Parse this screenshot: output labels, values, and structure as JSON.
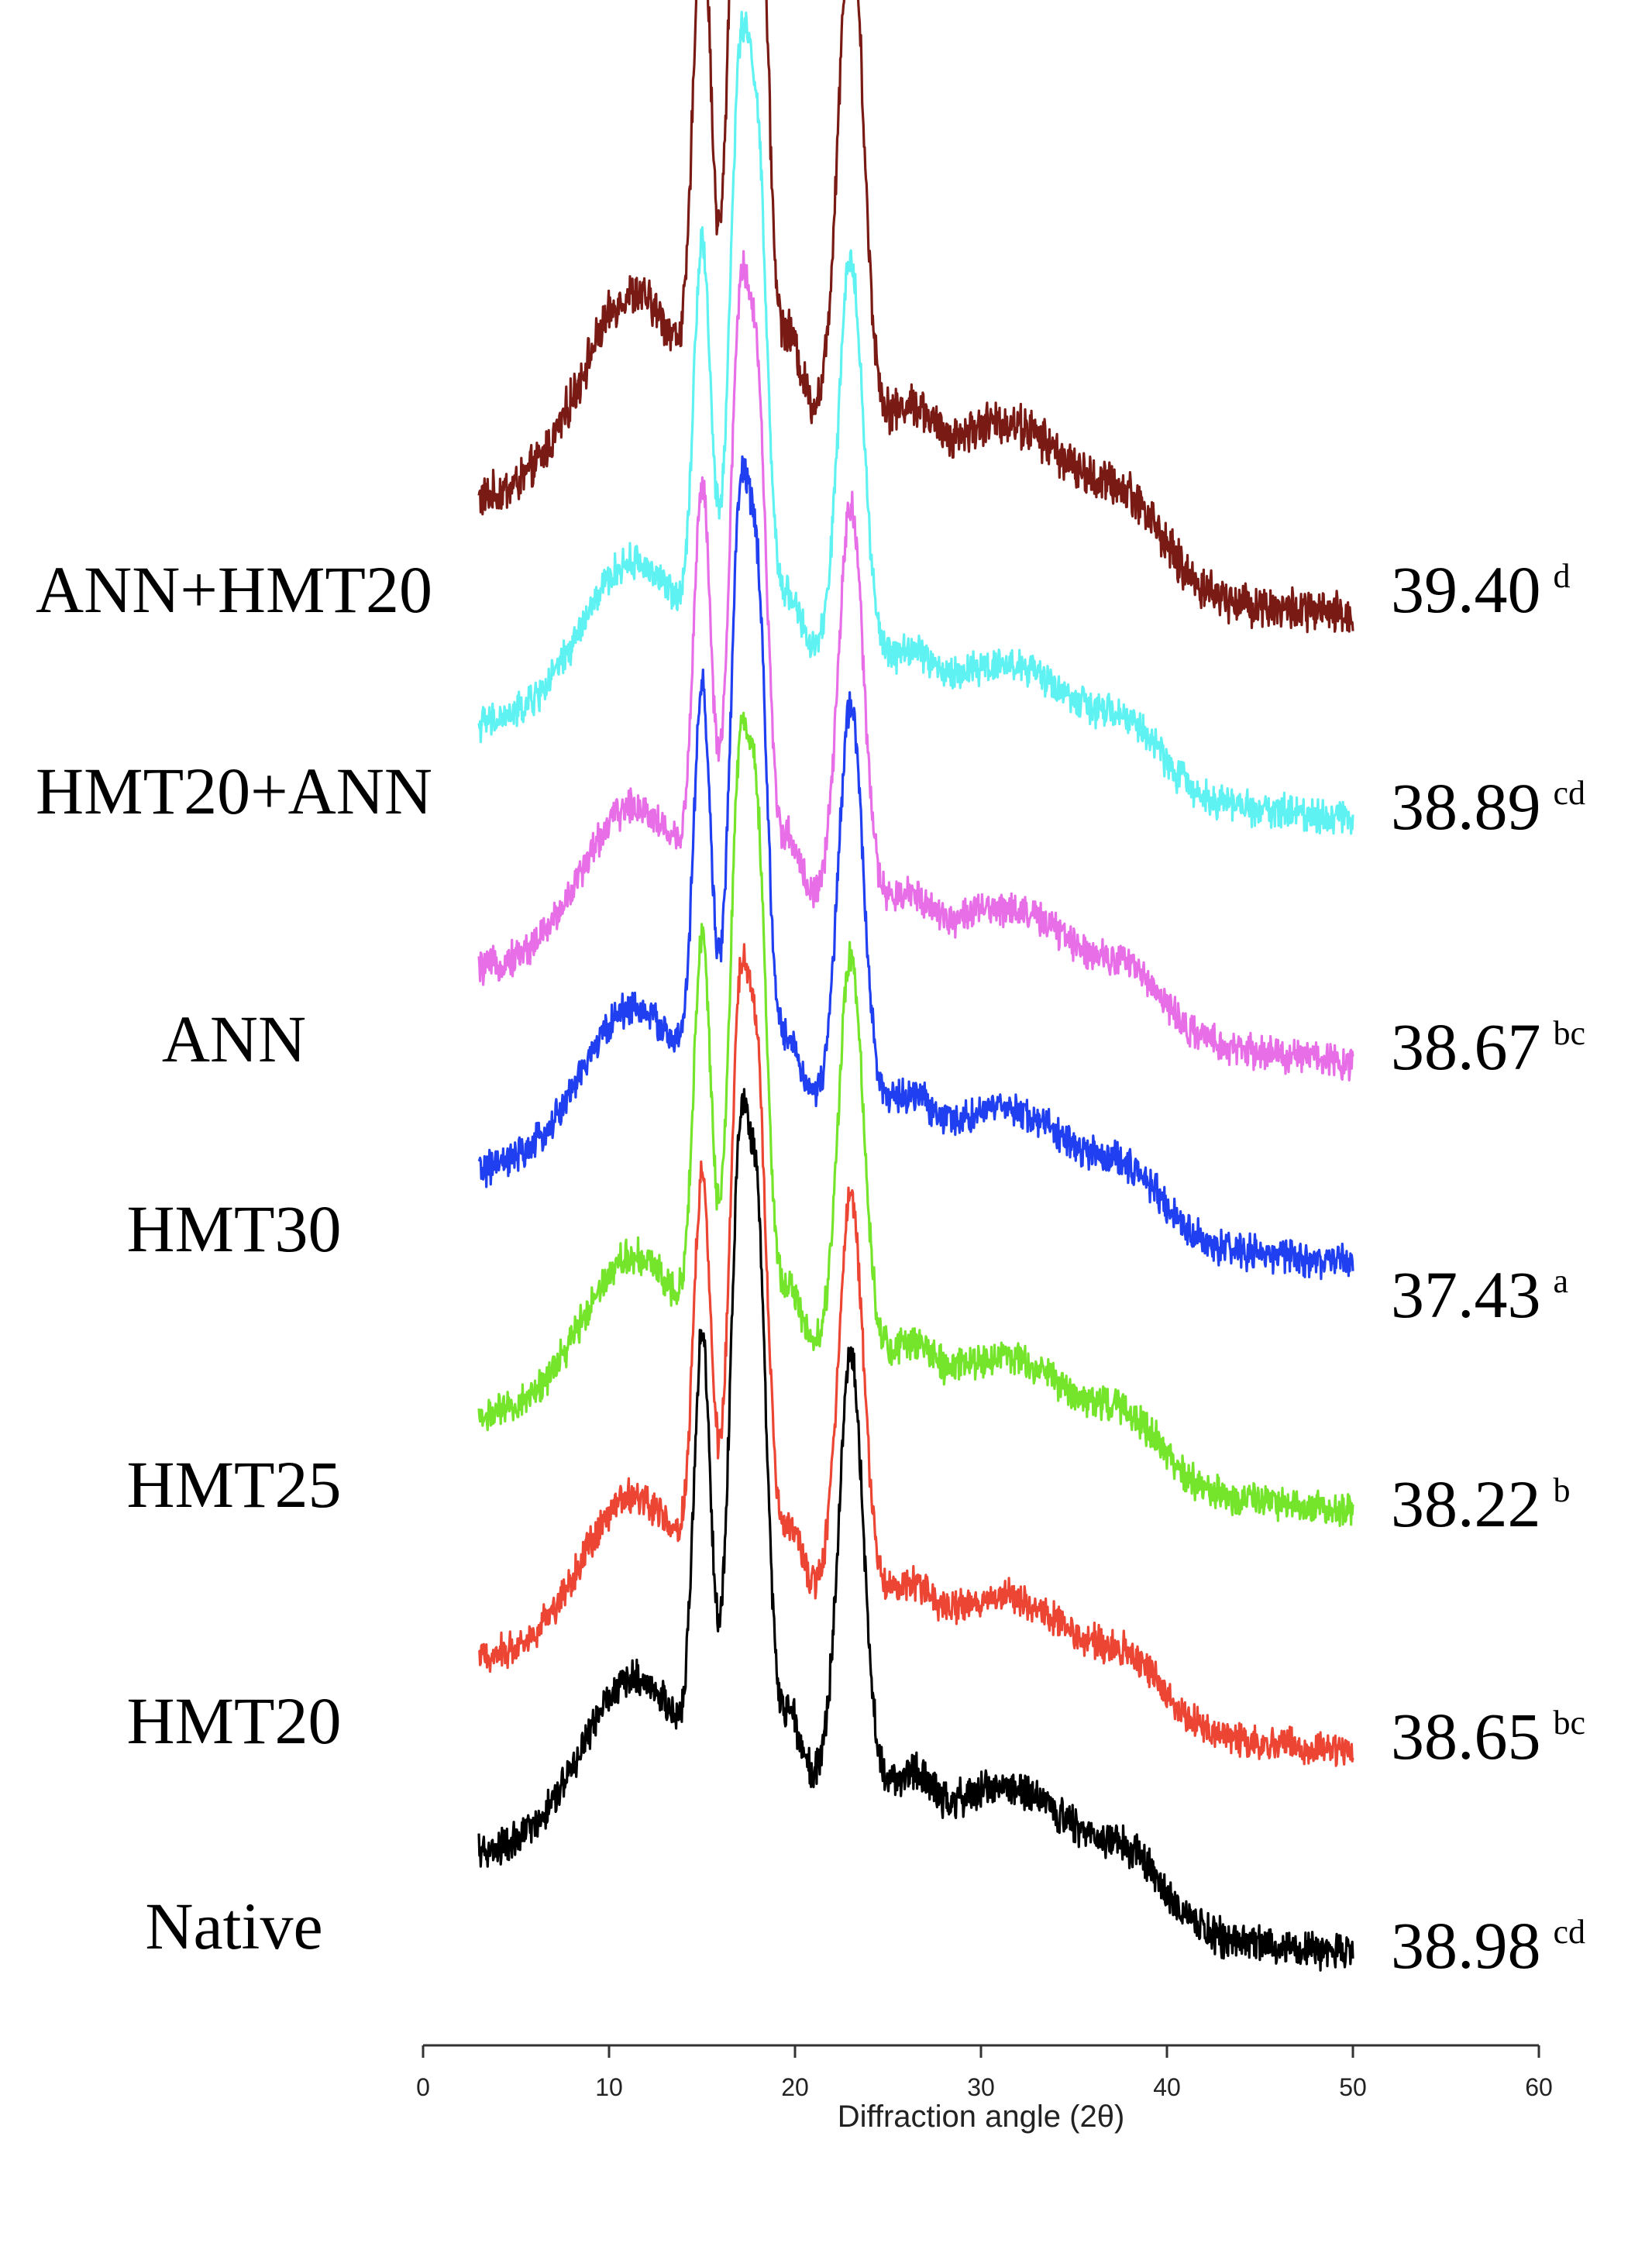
{
  "chart_data": {
    "type": "line",
    "xlabel": "Diffraction angle (2θ)",
    "xlim": [
      0,
      60
    ],
    "x_ticks": [
      "0",
      "10",
      "20",
      "30",
      "40",
      "50",
      "60"
    ],
    "x_range_data": [
      3,
      50
    ],
    "grid": false,
    "legend": "none",
    "stacked_offset": true,
    "series": [
      {
        "name": "ANN+HMT20",
        "value": "39.40",
        "letters": "d",
        "color": "#7a1a14"
      },
      {
        "name": "HMT20+ANN",
        "value": "38.89",
        "letters": "cd",
        "color": "#5ff2f2"
      },
      {
        "name": "ANN",
        "value": "38.67",
        "letters": "bc",
        "color": "#e86ee8"
      },
      {
        "name": "HMT30",
        "value": "37.43",
        "letters": "a",
        "color": "#1f3ff0"
      },
      {
        "name": "HMT25",
        "value": "38.22",
        "letters": "b",
        "color": "#74e52a"
      },
      {
        "name": "HMT20",
        "value": "38.65",
        "letters": "bc",
        "color": "#ec4534"
      },
      {
        "name": "Native",
        "value": "38.98",
        "letters": "cd",
        "color": "#000000"
      }
    ],
    "peaks_2theta": [
      11.2,
      15.0,
      17.0,
      18.0,
      19.8,
      23.0,
      26.5,
      30.5,
      33.5,
      38.3
    ]
  }
}
